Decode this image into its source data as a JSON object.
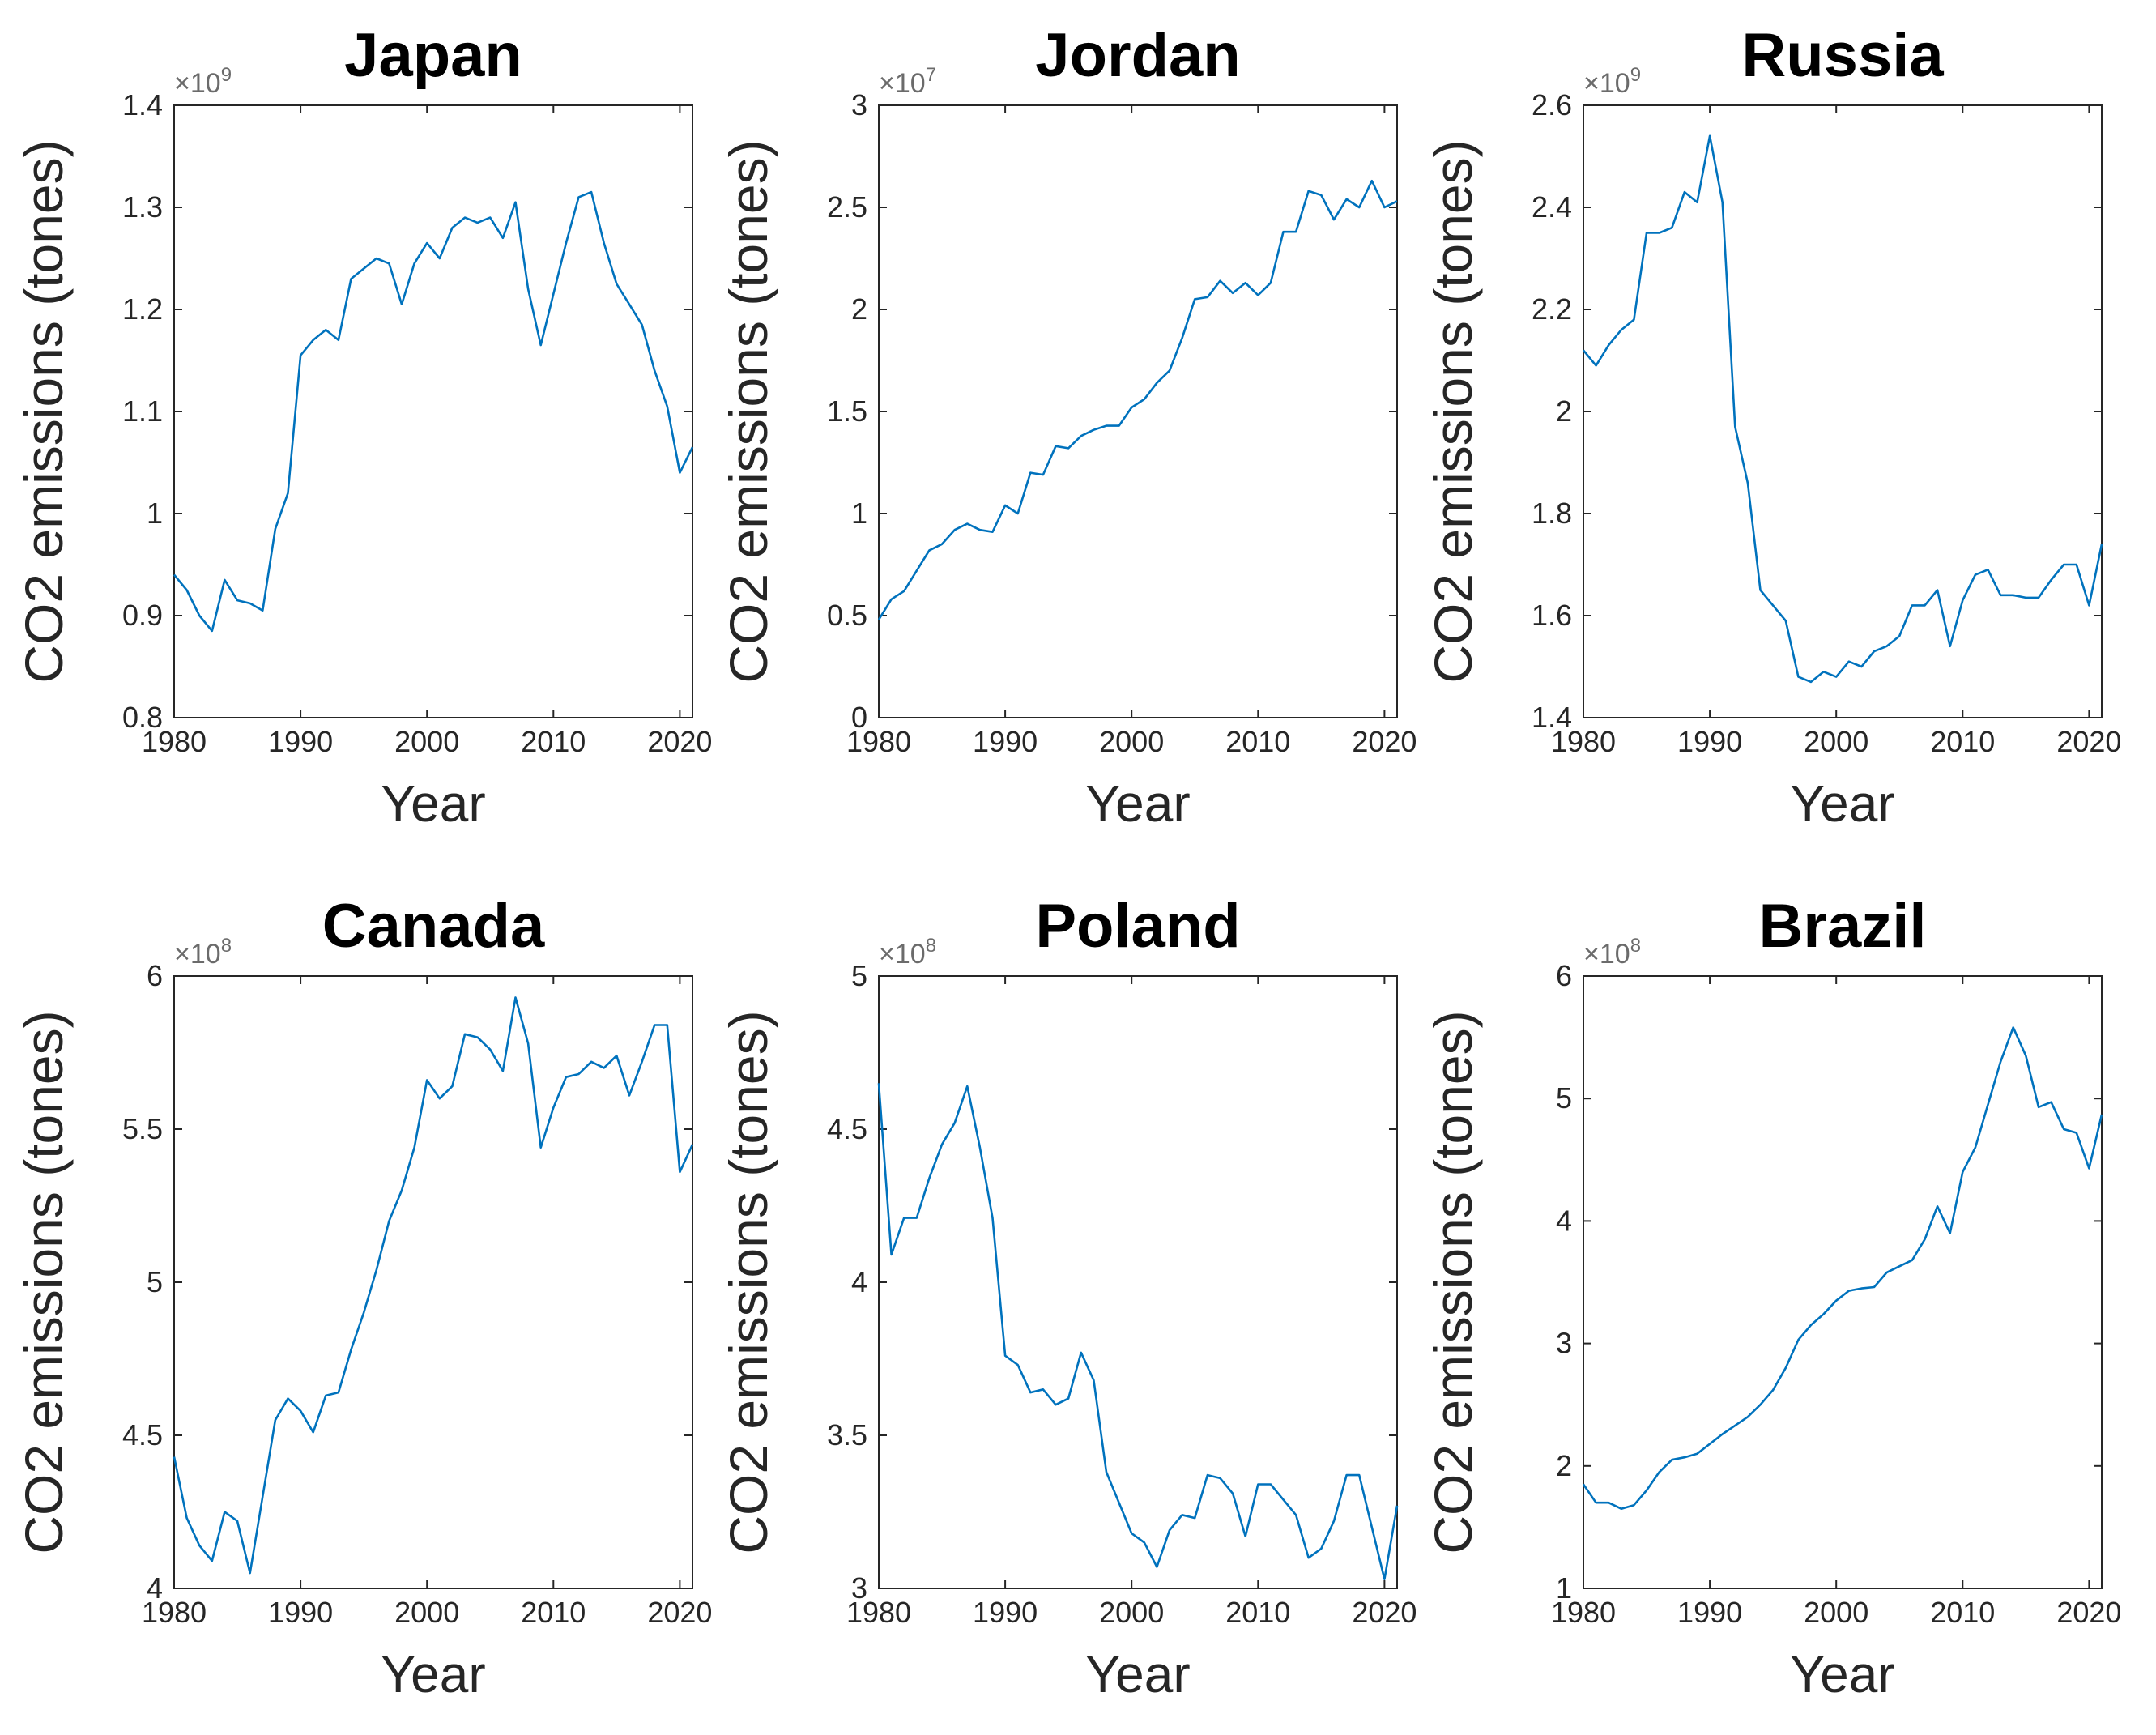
{
  "line_color": "#0072BD",
  "chart_data": [
    {
      "type": "line",
      "title": "Japan",
      "xlabel": "Year",
      "ylabel": "CO2 emissions (tones)",
      "exponent": 9,
      "exponent_base": "×10",
      "exponent_power": "9",
      "xlim": [
        1980,
        2021
      ],
      "ylim": [
        0.8,
        1.4
      ],
      "xticks": [
        1980,
        1990,
        2000,
        2010,
        2020
      ],
      "yticks": [
        0.8,
        0.9,
        1.0,
        1.1,
        1.2,
        1.3,
        1.4
      ],
      "xtick_labels": [
        "1980",
        "1990",
        "2000",
        "2010",
        "2020"
      ],
      "ytick_labels": [
        "0.8",
        "0.9",
        "1",
        "1.1",
        "1.2",
        "1.3",
        "1.4"
      ],
      "x": [
        1980,
        1981,
        1982,
        1983,
        1984,
        1985,
        1986,
        1987,
        1988,
        1989,
        1990,
        1991,
        1992,
        1993,
        1994,
        1995,
        1996,
        1997,
        1998,
        1999,
        2000,
        2001,
        2002,
        2003,
        2004,
        2005,
        2006,
        2007,
        2008,
        2009,
        2010,
        2011,
        2012,
        2013,
        2014,
        2015,
        2016,
        2017,
        2018,
        2019,
        2020,
        2021
      ],
      "y": [
        0.94,
        0.925,
        0.9,
        0.885,
        0.935,
        0.915,
        0.912,
        0.905,
        0.985,
        1.02,
        1.155,
        1.17,
        1.18,
        1.17,
        1.23,
        1.24,
        1.25,
        1.245,
        1.205,
        1.245,
        1.265,
        1.25,
        1.28,
        1.29,
        1.285,
        1.29,
        1.27,
        1.305,
        1.22,
        1.165,
        1.215,
        1.265,
        1.31,
        1.315,
        1.265,
        1.225,
        1.205,
        1.185,
        1.14,
        1.105,
        1.04,
        1.065
      ]
    },
    {
      "type": "line",
      "title": "Jordan",
      "xlabel": "Year",
      "ylabel": "CO2 emissions (tones)",
      "exponent": 7,
      "exponent_base": "×10",
      "exponent_power": "7",
      "xlim": [
        1980,
        2021
      ],
      "ylim": [
        0,
        3
      ],
      "xticks": [
        1980,
        1990,
        2000,
        2010,
        2020
      ],
      "yticks": [
        0,
        0.5,
        1.0,
        1.5,
        2.0,
        2.5,
        3.0
      ],
      "xtick_labels": [
        "1980",
        "1990",
        "2000",
        "2010",
        "2020"
      ],
      "ytick_labels": [
        "0",
        "0.5",
        "1",
        "1.5",
        "2",
        "2.5",
        "3"
      ],
      "x": [
        1980,
        1981,
        1982,
        1983,
        1984,
        1985,
        1986,
        1987,
        1988,
        1989,
        1990,
        1991,
        1992,
        1993,
        1994,
        1995,
        1996,
        1997,
        1998,
        1999,
        2000,
        2001,
        2002,
        2003,
        2004,
        2005,
        2006,
        2007,
        2008,
        2009,
        2010,
        2011,
        2012,
        2013,
        2014,
        2015,
        2016,
        2017,
        2018,
        2019,
        2020,
        2021
      ],
      "y": [
        0.48,
        0.58,
        0.62,
        0.72,
        0.82,
        0.85,
        0.92,
        0.95,
        0.92,
        0.91,
        1.04,
        1.0,
        1.2,
        1.19,
        1.33,
        1.32,
        1.38,
        1.41,
        1.43,
        1.43,
        1.52,
        1.56,
        1.64,
        1.7,
        1.86,
        2.05,
        2.06,
        2.14,
        2.08,
        2.13,
        2.07,
        2.13,
        2.38,
        2.38,
        2.58,
        2.56,
        2.44,
        2.54,
        2.5,
        2.63,
        2.5,
        2.53
      ]
    },
    {
      "type": "line",
      "title": "Russia",
      "xlabel": "Year",
      "ylabel": "CO2 emissions (tones)",
      "exponent": 9,
      "exponent_base": "×10",
      "exponent_power": "9",
      "xlim": [
        1980,
        2021
      ],
      "ylim": [
        1.4,
        2.6
      ],
      "xticks": [
        1980,
        1990,
        2000,
        2010,
        2020
      ],
      "yticks": [
        1.4,
        1.6,
        1.8,
        2.0,
        2.2,
        2.4,
        2.6
      ],
      "xtick_labels": [
        "1980",
        "1990",
        "2000",
        "2010",
        "2020"
      ],
      "ytick_labels": [
        "1.4",
        "1.6",
        "1.8",
        "2",
        "2.2",
        "2.4",
        "2.6"
      ],
      "x": [
        1980,
        1981,
        1982,
        1983,
        1984,
        1985,
        1986,
        1987,
        1988,
        1989,
        1990,
        1991,
        1992,
        1993,
        1994,
        1995,
        1996,
        1997,
        1998,
        1999,
        2000,
        2001,
        2002,
        2003,
        2004,
        2005,
        2006,
        2007,
        2008,
        2009,
        2010,
        2011,
        2012,
        2013,
        2014,
        2015,
        2016,
        2017,
        2018,
        2019,
        2020,
        2021
      ],
      "y": [
        2.12,
        2.09,
        2.13,
        2.16,
        2.18,
        2.35,
        2.35,
        2.36,
        2.43,
        2.41,
        2.54,
        2.41,
        1.97,
        1.86,
        1.65,
        1.62,
        1.59,
        1.48,
        1.47,
        1.49,
        1.48,
        1.51,
        1.5,
        1.53,
        1.54,
        1.56,
        1.62,
        1.62,
        1.65,
        1.54,
        1.63,
        1.68,
        1.69,
        1.64,
        1.64,
        1.635,
        1.635,
        1.67,
        1.7,
        1.7,
        1.62,
        1.74
      ]
    },
    {
      "type": "line",
      "title": "Canada",
      "xlabel": "Year",
      "ylabel": "CO2 emissions (tones)",
      "exponent": 8,
      "exponent_base": "×10",
      "exponent_power": "8",
      "xlim": [
        1980,
        2021
      ],
      "ylim": [
        4,
        6
      ],
      "xticks": [
        1980,
        1990,
        2000,
        2010,
        2020
      ],
      "yticks": [
        4.0,
        4.5,
        5.0,
        5.5,
        6.0
      ],
      "xtick_labels": [
        "1980",
        "1990",
        "2000",
        "2010",
        "2020"
      ],
      "ytick_labels": [
        "4",
        "4.5",
        "5",
        "5.5",
        "6"
      ],
      "x": [
        1980,
        1981,
        1982,
        1983,
        1984,
        1985,
        1986,
        1987,
        1988,
        1989,
        1990,
        1991,
        1992,
        1993,
        1994,
        1995,
        1996,
        1997,
        1998,
        1999,
        2000,
        2001,
        2002,
        2003,
        2004,
        2005,
        2006,
        2007,
        2008,
        2009,
        2010,
        2011,
        2012,
        2013,
        2014,
        2015,
        2016,
        2017,
        2018,
        2019,
        2020,
        2021
      ],
      "y": [
        4.43,
        4.23,
        4.14,
        4.09,
        4.25,
        4.22,
        4.05,
        4.3,
        4.55,
        4.62,
        4.58,
        4.51,
        4.63,
        4.64,
        4.78,
        4.9,
        5.04,
        5.2,
        5.3,
        5.44,
        5.66,
        5.6,
        5.64,
        5.81,
        5.8,
        5.76,
        5.69,
        5.93,
        5.78,
        5.44,
        5.57,
        5.67,
        5.68,
        5.72,
        5.7,
        5.74,
        5.61,
        5.72,
        5.84,
        5.84,
        5.36,
        5.45
      ]
    },
    {
      "type": "line",
      "title": "Poland",
      "xlabel": "Year",
      "ylabel": "CO2 emissions (tones)",
      "exponent": 8,
      "exponent_base": "×10",
      "exponent_power": "8",
      "xlim": [
        1980,
        2021
      ],
      "ylim": [
        3,
        5
      ],
      "xticks": [
        1980,
        1990,
        2000,
        2010,
        2020
      ],
      "yticks": [
        3.0,
        3.5,
        4.0,
        4.5,
        5.0
      ],
      "xtick_labels": [
        "1980",
        "1990",
        "2000",
        "2010",
        "2020"
      ],
      "ytick_labels": [
        "3",
        "3.5",
        "4",
        "4.5",
        "5"
      ],
      "x": [
        1980,
        1981,
        1982,
        1983,
        1984,
        1985,
        1986,
        1987,
        1988,
        1989,
        1990,
        1991,
        1992,
        1993,
        1994,
        1995,
        1996,
        1997,
        1998,
        1999,
        2000,
        2001,
        2002,
        2003,
        2004,
        2005,
        2006,
        2007,
        2008,
        2009,
        2010,
        2011,
        2012,
        2013,
        2014,
        2015,
        2016,
        2017,
        2018,
        2019,
        2020,
        2021
      ],
      "y": [
        4.65,
        4.09,
        4.21,
        4.21,
        4.34,
        4.45,
        4.52,
        4.64,
        4.44,
        4.21,
        3.76,
        3.73,
        3.64,
        3.65,
        3.6,
        3.62,
        3.77,
        3.68,
        3.38,
        3.28,
        3.18,
        3.15,
        3.07,
        3.19,
        3.24,
        3.23,
        3.37,
        3.36,
        3.31,
        3.17,
        3.34,
        3.34,
        3.29,
        3.24,
        3.1,
        3.13,
        3.22,
        3.37,
        3.37,
        3.2,
        3.03,
        3.27
      ]
    },
    {
      "type": "line",
      "title": "Brazil",
      "xlabel": "Year",
      "ylabel": "CO2 emissions (tones)",
      "exponent": 8,
      "exponent_base": "×10",
      "exponent_power": "8",
      "xlim": [
        1980,
        2021
      ],
      "ylim": [
        1,
        6
      ],
      "xticks": [
        1980,
        1990,
        2000,
        2010,
        2020
      ],
      "yticks": [
        1,
        2,
        3,
        4,
        5,
        6
      ],
      "xtick_labels": [
        "1980",
        "1990",
        "2000",
        "2010",
        "2020"
      ],
      "ytick_labels": [
        "1",
        "2",
        "3",
        "4",
        "5",
        "6"
      ],
      "x": [
        1980,
        1981,
        1982,
        1983,
        1984,
        1985,
        1986,
        1987,
        1988,
        1989,
        1990,
        1991,
        1992,
        1993,
        1994,
        1995,
        1996,
        1997,
        1998,
        1999,
        2000,
        2001,
        2002,
        2003,
        2004,
        2005,
        2006,
        2007,
        2008,
        2009,
        2010,
        2011,
        2012,
        2013,
        2014,
        2015,
        2016,
        2017,
        2018,
        2019,
        2020,
        2021
      ],
      "y": [
        1.85,
        1.7,
        1.7,
        1.65,
        1.68,
        1.8,
        1.95,
        2.05,
        2.07,
        2.1,
        2.18,
        2.26,
        2.33,
        2.4,
        2.5,
        2.62,
        2.8,
        3.03,
        3.15,
        3.24,
        3.35,
        3.43,
        3.45,
        3.46,
        3.58,
        3.63,
        3.68,
        3.85,
        4.12,
        3.9,
        4.4,
        4.6,
        4.95,
        5.3,
        5.58,
        5.35,
        4.93,
        4.97,
        4.75,
        4.72,
        4.43,
        4.87
      ]
    }
  ]
}
